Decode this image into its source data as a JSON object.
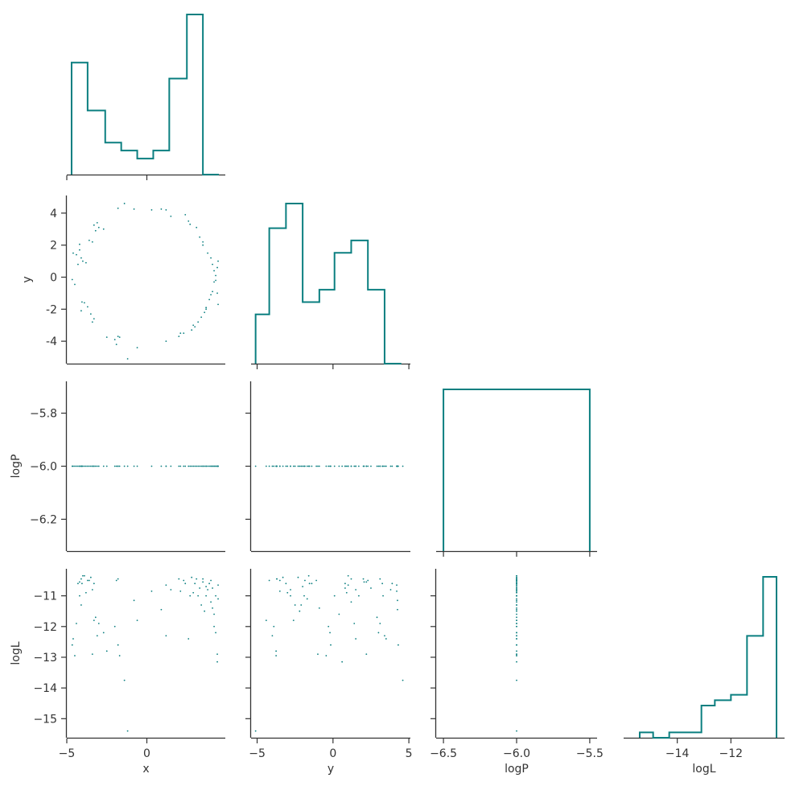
{
  "color": "#0b7f80",
  "chart_data": [
    {
      "panel": "x-hist",
      "type": "histogram",
      "x_range": [
        -5.0,
        4.9
      ],
      "bin_edges": [
        -4.7,
        -3.7,
        -2.6,
        -1.6,
        -0.6,
        0.4,
        1.4,
        2.5,
        3.5,
        4.5
      ],
      "counts": [
        14,
        8,
        4,
        3,
        2,
        3,
        12,
        20,
        0
      ],
      "x_ticks": [
        -5,
        0
      ],
      "xlabel": "",
      "ylabel": ""
    },
    {
      "panel": "y-x",
      "type": "scatter",
      "x_range": [
        -5.0,
        4.9
      ],
      "y_range": [
        -5.4,
        5.1
      ],
      "y_ticks": [
        4,
        2,
        0,
        -2,
        -4
      ],
      "xlabel": "",
      "ylabel": "y"
    },
    {
      "panel": "y-hist",
      "type": "histogram",
      "x_range": [
        -5.4,
        5.1
      ],
      "bin_edges": [
        -5.1,
        -4.2,
        -3.1,
        -2.0,
        -0.9,
        0.1,
        1.2,
        2.3,
        3.4,
        4.5
      ],
      "counts": [
        4,
        11,
        13,
        5,
        6,
        9,
        10,
        6,
        0
      ],
      "x_ticks": [
        -5,
        0,
        5
      ],
      "xlabel": "",
      "ylabel": ""
    },
    {
      "panel": "logP-x",
      "type": "scatter",
      "x_range": [
        -5.0,
        4.9
      ],
      "y_range": [
        -6.32,
        -5.68
      ],
      "y_ticks": [
        -5.8,
        -6.0,
        -6.2
      ],
      "y_tick_labels": [
        "−5.8",
        "−6.0",
        "−6.2"
      ],
      "xlabel": "",
      "ylabel": "logP"
    },
    {
      "panel": "logP-y",
      "type": "scatter",
      "x_range": [
        -5.4,
        5.1
      ],
      "y_range": [
        -6.32,
        -5.68
      ],
      "xlabel": "",
      "ylabel": ""
    },
    {
      "panel": "logP-hist",
      "type": "histogram",
      "x_range": [
        -6.55,
        -5.45
      ],
      "bin_edges": [
        -6.5,
        -5.5
      ],
      "counts": [
        1
      ],
      "x_ticks": [
        -6.5,
        -6.0,
        -5.5
      ],
      "xlabel": "",
      "ylabel": ""
    },
    {
      "panel": "logL-x",
      "type": "scatter",
      "x_range": [
        -5.0,
        4.9
      ],
      "y_range": [
        -15.62,
        -10.12
      ],
      "y_ticks": [
        -11,
        -12,
        -13,
        -14,
        -15
      ],
      "y_tick_labels": [
        "−11",
        "−12",
        "−13",
        "−14",
        "−15"
      ],
      "x_ticks": [
        -5,
        0
      ],
      "x_tick_labels": [
        "−5",
        "0"
      ],
      "xlabel": "x",
      "ylabel": "logL"
    },
    {
      "panel": "logL-y",
      "type": "scatter",
      "x_range": [
        -5.4,
        5.1
      ],
      "y_range": [
        -15.62,
        -10.12
      ],
      "x_ticks": [
        -5,
        0,
        5
      ],
      "x_tick_labels": [
        "−5",
        "0",
        "5"
      ],
      "xlabel": "y",
      "ylabel": ""
    },
    {
      "panel": "logL-logP",
      "type": "scatter",
      "x_range": [
        -6.55,
        -5.45
      ],
      "y_range": [
        -15.62,
        -10.12
      ],
      "x_ticks": [
        -6.5,
        -6.0,
        -5.5
      ],
      "x_tick_labels": [
        "−6.5",
        "−6.0",
        "−5.5"
      ],
      "xlabel": "logP",
      "ylabel": ""
    },
    {
      "panel": "logL-hist",
      "type": "histogram",
      "x_range": [
        -16.0,
        -10.0
      ],
      "bin_edges": [
        -15.4,
        -14.9,
        -14.3,
        -13.7,
        -13.1,
        -12.6,
        -12.0,
        -11.4,
        -10.8,
        -10.3
      ],
      "counts": [
        1,
        0,
        1,
        1,
        6,
        7,
        8,
        19,
        30
      ],
      "x_ticks": [
        -14,
        -12
      ],
      "x_tick_labels": [
        "−14",
        "−12"
      ],
      "xlabel": "logL",
      "ylabel": ""
    }
  ],
  "samples": [
    {
      "x": -4.66,
      "y": -0.15,
      "logL": -12.6
    },
    {
      "x": -4.5,
      "y": -0.45,
      "logL": -12.95
    },
    {
      "x": -4.6,
      "y": 1.5,
      "logL": -12.4
    },
    {
      "x": -4.4,
      "y": 1.4,
      "logL": -11.9
    },
    {
      "x": -4.2,
      "y": 2.05,
      "logL": -10.55
    },
    {
      "x": -4.3,
      "y": 0.8,
      "logL": -10.6
    },
    {
      "x": -4.1,
      "y": 1.2,
      "logL": -10.45
    },
    {
      "x": -4.0,
      "y": 1.0,
      "logL": -10.35
    },
    {
      "x": -4.2,
      "y": 1.7,
      "logL": -11.0
    },
    {
      "x": -3.8,
      "y": 0.9,
      "logL": -10.9
    },
    {
      "x": -4.05,
      "y": -1.55,
      "logL": -10.6
    },
    {
      "x": -3.9,
      "y": -1.6,
      "logL": -10.35
    },
    {
      "x": -3.7,
      "y": -1.85,
      "logL": -10.5
    },
    {
      "x": -4.1,
      "y": -2.1,
      "logL": -11.3
    },
    {
      "x": -3.5,
      "y": -2.3,
      "logL": -10.4
    },
    {
      "x": -3.4,
      "y": -2.8,
      "logL": -10.8
    },
    {
      "x": -3.3,
      "y": -2.6,
      "logL": -11.8
    },
    {
      "x": -3.6,
      "y": 2.3,
      "logL": -10.5
    },
    {
      "x": -3.4,
      "y": 2.2,
      "logL": -12.9
    },
    {
      "x": -3.1,
      "y": 3.4,
      "logL": -12.3
    },
    {
      "x": -3.0,
      "y": 3.1,
      "logL": -11.9
    },
    {
      "x": -3.3,
      "y": 3.25,
      "logL": -10.6
    },
    {
      "x": -2.7,
      "y": 3.0,
      "logL": -12.2
    },
    {
      "x": -3.2,
      "y": 2.9,
      "logL": -11.7
    },
    {
      "x": -2.5,
      "y": -3.75,
      "logL": -12.8
    },
    {
      "x": -2.0,
      "y": -3.9,
      "logL": -12.0
    },
    {
      "x": -1.8,
      "y": -3.7,
      "logL": -10.45
    },
    {
      "x": -1.9,
      "y": -4.2,
      "logL": -10.5
    },
    {
      "x": -1.8,
      "y": 4.3,
      "logL": -12.6
    },
    {
      "x": -1.7,
      "y": -3.75,
      "logL": -12.95
    },
    {
      "x": -1.4,
      "y": 4.6,
      "logL": -13.75
    },
    {
      "x": -1.2,
      "y": -5.1,
      "logL": -15.4
    },
    {
      "x": -0.8,
      "y": 4.25,
      "logL": -11.15
    },
    {
      "x": -0.6,
      "y": -4.4,
      "logL": -11.8
    },
    {
      "x": 0.3,
      "y": 4.2,
      "logL": -10.85
    },
    {
      "x": 0.9,
      "y": 4.25,
      "logL": -11.45
    },
    {
      "x": 1.2,
      "y": 4.2,
      "logL": -10.65
    },
    {
      "x": 1.5,
      "y": 3.8,
      "logL": -10.8
    },
    {
      "x": 1.2,
      "y": -4.0,
      "logL": -12.3
    },
    {
      "x": 2.0,
      "y": -3.7,
      "logL": -10.45
    },
    {
      "x": 2.1,
      "y": -3.5,
      "logL": -10.85
    },
    {
      "x": 2.3,
      "y": -3.5,
      "logL": -10.5
    },
    {
      "x": 2.4,
      "y": 3.9,
      "logL": -10.6
    },
    {
      "x": 2.6,
      "y": 3.5,
      "logL": -12.4
    },
    {
      "x": 2.7,
      "y": 3.3,
      "logL": -11.0
    },
    {
      "x": 2.8,
      "y": -3.3,
      "logL": -10.4
    },
    {
      "x": 2.9,
      "y": -3.0,
      "logL": -10.9
    },
    {
      "x": 3.0,
      "y": -3.1,
      "logL": -10.6
    },
    {
      "x": 3.1,
      "y": 3.1,
      "logL": -10.45
    },
    {
      "x": 3.2,
      "y": -2.8,
      "logL": -11.0
    },
    {
      "x": 3.3,
      "y": 2.5,
      "logL": -10.75
    },
    {
      "x": 3.4,
      "y": -2.5,
      "logL": -11.3
    },
    {
      "x": 3.5,
      "y": 2.2,
      "logL": -10.55
    },
    {
      "x": 3.6,
      "y": -2.2,
      "logL": -11.5
    },
    {
      "x": 3.5,
      "y": 2.0,
      "logL": -10.45
    },
    {
      "x": 3.7,
      "y": -1.9,
      "logL": -11.0
    },
    {
      "x": 3.7,
      "y": -2.0,
      "logL": -10.7
    },
    {
      "x": 3.8,
      "y": 1.5,
      "logL": -10.8
    },
    {
      "x": 3.9,
      "y": -1.4,
      "logL": -10.6
    },
    {
      "x": 4.0,
      "y": 1.2,
      "logL": -11.2
    },
    {
      "x": 4.0,
      "y": -1.1,
      "logL": -10.5
    },
    {
      "x": 4.1,
      "y": 0.8,
      "logL": -10.75
    },
    {
      "x": 4.1,
      "y": -0.9,
      "logL": -11.4
    },
    {
      "x": 4.2,
      "y": 0.4,
      "logL": -11.6
    },
    {
      "x": 4.2,
      "y": -0.3,
      "logL": -12.0
    },
    {
      "x": 4.3,
      "y": 0.1,
      "logL": -11.0
    },
    {
      "x": 4.3,
      "y": -0.2,
      "logL": -12.2
    },
    {
      "x": 4.4,
      "y": 0.6,
      "logL": -13.15
    },
    {
      "x": 4.45,
      "y": 1.0,
      "logL": -10.65
    },
    {
      "x": 4.4,
      "y": -1.0,
      "logL": -12.9
    },
    {
      "x": 4.45,
      "y": -1.7,
      "logL": -11.1
    }
  ]
}
